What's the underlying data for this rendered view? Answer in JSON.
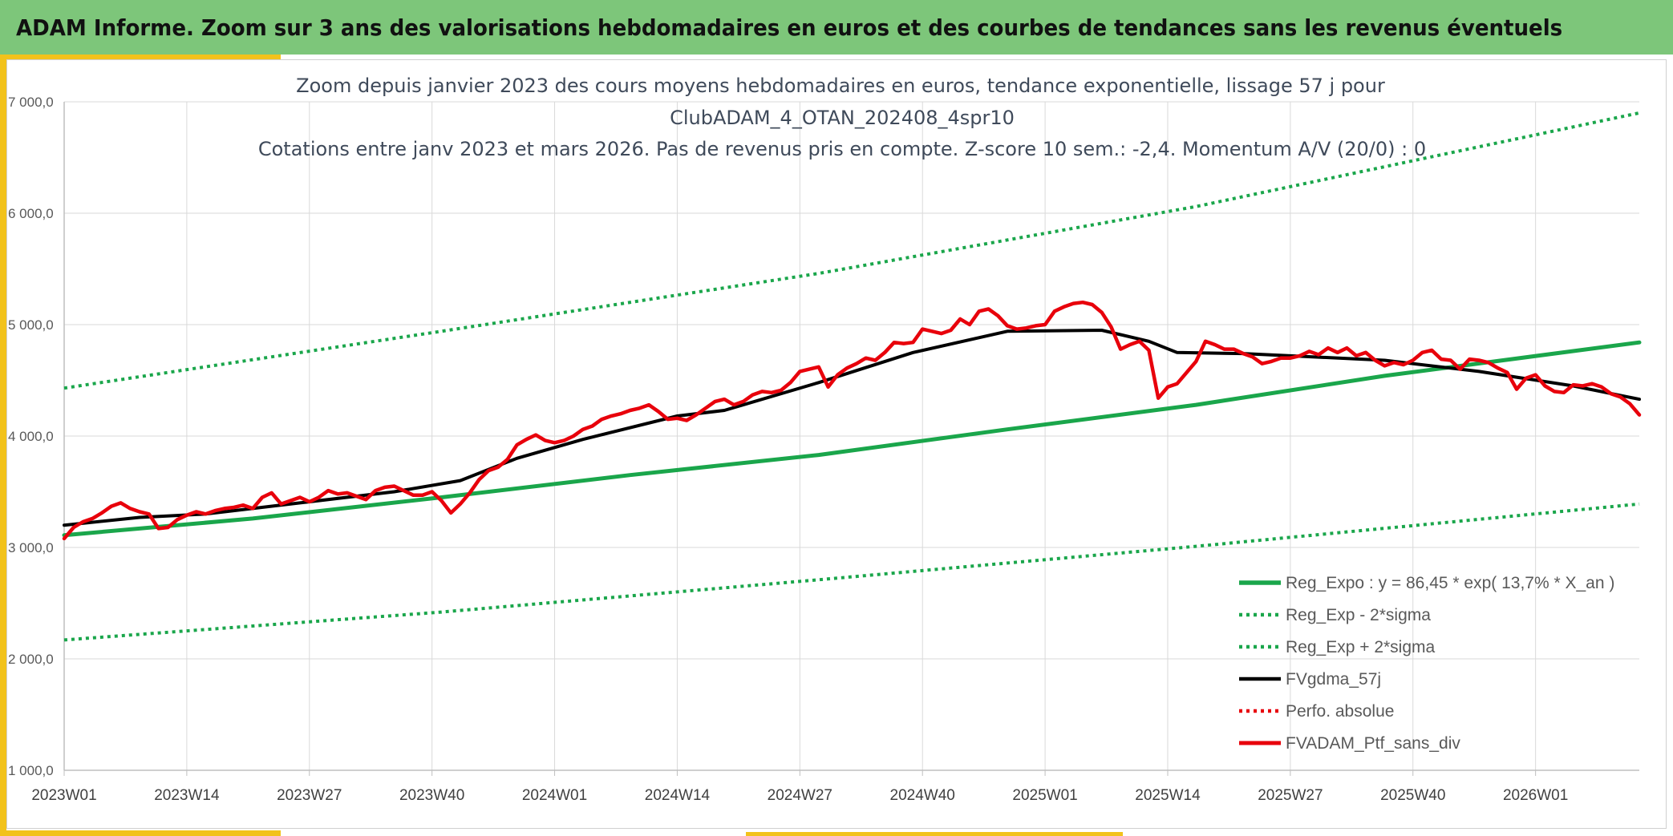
{
  "header": {
    "title": "ADAM Informe. Zoom sur 3 ans des valorisations hebdomadaires en euros et des courbes de tendances sans les revenus éventuels"
  },
  "colors": {
    "header_bg": "#7dc67a",
    "accent": "#f2c21b",
    "trend": "#1aa64b",
    "trend_band": "#1aa64b",
    "smoothed": "#000000",
    "price": "#e8000b",
    "perf": "#e8000b"
  },
  "chart_data": {
    "type": "line",
    "title_lines": [
      "Zoom depuis janvier 2023 des cours moyens hebdomadaires en euros, tendance exponentielle, lissage 57 j pour",
      "ClubADAM_4_OTAN_202408_4spr10",
      "Cotations entre janv 2023 et mars 2026. Pas de revenus pris en compte. Z-score 10 sem.: -2,4. Momentum A/V (20/0) : 0"
    ],
    "x_range": [
      0,
      167
    ],
    "ylim": [
      1000,
      7000
    ],
    "y_ticks": [
      {
        "value": 1000,
        "label": "1 000,0"
      },
      {
        "value": 2000,
        "label": "2 000,0"
      },
      {
        "value": 3000,
        "label": "3 000,0"
      },
      {
        "value": 4000,
        "label": "4 000,0"
      },
      {
        "value": 5000,
        "label": "5 000,0"
      },
      {
        "value": 6000,
        "label": "6 000,0"
      },
      {
        "value": 7000,
        "label": "7 000,0"
      }
    ],
    "x_ticks": [
      {
        "x": 0,
        "label": "2023W01"
      },
      {
        "x": 13,
        "label": "2023W14"
      },
      {
        "x": 26,
        "label": "2023W27"
      },
      {
        "x": 39,
        "label": "2023W40"
      },
      {
        "x": 52,
        "label": "2024W01"
      },
      {
        "x": 65,
        "label": "2024W14"
      },
      {
        "x": 78,
        "label": "2024W27"
      },
      {
        "x": 91,
        "label": "2024W40"
      },
      {
        "x": 104,
        "label": "2025W01"
      },
      {
        "x": 117,
        "label": "2025W14"
      },
      {
        "x": 130,
        "label": "2025W27"
      },
      {
        "x": 143,
        "label": "2025W40"
      },
      {
        "x": 156,
        "label": "2026W01"
      }
    ],
    "grid": true,
    "legend_position": "bottom-right",
    "series": [
      {
        "name": "Reg_Expo : y = 86,45 * exp( 13,7% *  X_an )",
        "style": "solid-green",
        "points": [
          [
            0,
            3110
          ],
          [
            20,
            3260
          ],
          [
            40,
            3450
          ],
          [
            60,
            3650
          ],
          [
            80,
            3830
          ],
          [
            100,
            4060
          ],
          [
            120,
            4280
          ],
          [
            140,
            4540
          ],
          [
            167,
            4840
          ]
        ]
      },
      {
        "name": "Reg_Exp - 2*sigma",
        "style": "dotted-green",
        "points": [
          [
            0,
            2170
          ],
          [
            40,
            2420
          ],
          [
            80,
            2710
          ],
          [
            120,
            3010
          ],
          [
            167,
            3390
          ]
        ]
      },
      {
        "name": "Reg_Exp + 2*sigma",
        "style": "dotted-green",
        "points": [
          [
            0,
            4430
          ],
          [
            40,
            4940
          ],
          [
            80,
            5460
          ],
          [
            120,
            6060
          ],
          [
            167,
            6900
          ]
        ]
      },
      {
        "name": "FVgdma_57j",
        "style": "solid-black",
        "points": [
          [
            0,
            3200
          ],
          [
            8,
            3270
          ],
          [
            15,
            3300
          ],
          [
            25,
            3400
          ],
          [
            35,
            3500
          ],
          [
            42,
            3600
          ],
          [
            48,
            3800
          ],
          [
            55,
            3970
          ],
          [
            65,
            4180
          ],
          [
            70,
            4230
          ],
          [
            80,
            4480
          ],
          [
            90,
            4750
          ],
          [
            100,
            4940
          ],
          [
            110,
            4950
          ],
          [
            115,
            4850
          ],
          [
            118,
            4750
          ],
          [
            125,
            4740
          ],
          [
            130,
            4720
          ],
          [
            140,
            4680
          ],
          [
            150,
            4580
          ],
          [
            160,
            4450
          ],
          [
            167,
            4330
          ]
        ]
      },
      {
        "name": "Perfo. absolue",
        "style": "dotted-red",
        "points": []
      },
      {
        "name": "FVADAM_Ptf_sans_div",
        "style": "solid-red",
        "points": [
          [
            0,
            3080
          ],
          [
            1,
            3180
          ],
          [
            2,
            3230
          ],
          [
            3,
            3260
          ],
          [
            4,
            3310
          ],
          [
            5,
            3370
          ],
          [
            6,
            3400
          ],
          [
            7,
            3350
          ],
          [
            8,
            3320
          ],
          [
            9,
            3300
          ],
          [
            10,
            3170
          ],
          [
            11,
            3180
          ],
          [
            12,
            3250
          ],
          [
            13,
            3290
          ],
          [
            14,
            3320
          ],
          [
            15,
            3300
          ],
          [
            16,
            3330
          ],
          [
            17,
            3350
          ],
          [
            18,
            3360
          ],
          [
            19,
            3380
          ],
          [
            20,
            3350
          ],
          [
            21,
            3450
          ],
          [
            22,
            3490
          ],
          [
            23,
            3390
          ],
          [
            24,
            3420
          ],
          [
            25,
            3450
          ],
          [
            26,
            3410
          ],
          [
            27,
            3450
          ],
          [
            28,
            3510
          ],
          [
            29,
            3480
          ],
          [
            30,
            3490
          ],
          [
            31,
            3460
          ],
          [
            32,
            3430
          ],
          [
            33,
            3510
          ],
          [
            34,
            3540
          ],
          [
            35,
            3550
          ],
          [
            36,
            3510
          ],
          [
            37,
            3470
          ],
          [
            38,
            3470
          ],
          [
            39,
            3500
          ],
          [
            40,
            3420
          ],
          [
            41,
            3310
          ],
          [
            42,
            3390
          ],
          [
            43,
            3490
          ],
          [
            44,
            3610
          ],
          [
            45,
            3690
          ],
          [
            46,
            3720
          ],
          [
            47,
            3790
          ],
          [
            48,
            3920
          ],
          [
            49,
            3970
          ],
          [
            50,
            4010
          ],
          [
            51,
            3960
          ],
          [
            52,
            3940
          ],
          [
            53,
            3960
          ],
          [
            54,
            4000
          ],
          [
            55,
            4060
          ],
          [
            56,
            4090
          ],
          [
            57,
            4150
          ],
          [
            58,
            4180
          ],
          [
            59,
            4200
          ],
          [
            60,
            4230
          ],
          [
            61,
            4250
          ],
          [
            62,
            4280
          ],
          [
            63,
            4220
          ],
          [
            64,
            4150
          ],
          [
            65,
            4160
          ],
          [
            66,
            4140
          ],
          [
            67,
            4190
          ],
          [
            68,
            4250
          ],
          [
            69,
            4310
          ],
          [
            70,
            4330
          ],
          [
            71,
            4280
          ],
          [
            72,
            4310
          ],
          [
            73,
            4370
          ],
          [
            74,
            4400
          ],
          [
            75,
            4390
          ],
          [
            76,
            4410
          ],
          [
            77,
            4480
          ],
          [
            78,
            4580
          ],
          [
            79,
            4600
          ],
          [
            80,
            4620
          ],
          [
            81,
            4440
          ],
          [
            82,
            4550
          ],
          [
            83,
            4610
          ],
          [
            84,
            4650
          ],
          [
            85,
            4700
          ],
          [
            86,
            4680
          ],
          [
            87,
            4750
          ],
          [
            88,
            4840
          ],
          [
            89,
            4830
          ],
          [
            90,
            4840
          ],
          [
            91,
            4960
          ],
          [
            92,
            4940
          ],
          [
            93,
            4920
          ],
          [
            94,
            4950
          ],
          [
            95,
            5050
          ],
          [
            96,
            5000
          ],
          [
            97,
            5120
          ],
          [
            98,
            5140
          ],
          [
            99,
            5080
          ],
          [
            100,
            4990
          ],
          [
            101,
            4960
          ],
          [
            102,
            4970
          ],
          [
            103,
            4990
          ],
          [
            104,
            5000
          ],
          [
            105,
            5120
          ],
          [
            106,
            5160
          ],
          [
            107,
            5190
          ],
          [
            108,
            5200
          ],
          [
            109,
            5180
          ],
          [
            110,
            5110
          ],
          [
            111,
            4980
          ],
          [
            112,
            4780
          ],
          [
            113,
            4820
          ],
          [
            114,
            4850
          ],
          [
            115,
            4770
          ],
          [
            116,
            4340
          ],
          [
            117,
            4440
          ],
          [
            118,
            4470
          ],
          [
            119,
            4570
          ],
          [
            120,
            4670
          ],
          [
            121,
            4850
          ],
          [
            122,
            4820
          ],
          [
            123,
            4780
          ],
          [
            124,
            4780
          ],
          [
            125,
            4740
          ],
          [
            126,
            4710
          ],
          [
            127,
            4650
          ],
          [
            128,
            4670
          ],
          [
            129,
            4700
          ],
          [
            130,
            4700
          ],
          [
            131,
            4720
          ],
          [
            132,
            4760
          ],
          [
            133,
            4730
          ],
          [
            134,
            4790
          ],
          [
            135,
            4750
          ],
          [
            136,
            4790
          ],
          [
            137,
            4720
          ],
          [
            138,
            4750
          ],
          [
            139,
            4680
          ],
          [
            140,
            4630
          ],
          [
            141,
            4660
          ],
          [
            142,
            4640
          ],
          [
            143,
            4680
          ],
          [
            144,
            4750
          ],
          [
            145,
            4770
          ],
          [
            146,
            4690
          ],
          [
            147,
            4680
          ],
          [
            148,
            4600
          ],
          [
            149,
            4690
          ],
          [
            150,
            4680
          ],
          [
            151,
            4660
          ],
          [
            152,
            4610
          ],
          [
            153,
            4570
          ],
          [
            154,
            4420
          ],
          [
            155,
            4520
          ],
          [
            156,
            4550
          ],
          [
            157,
            4450
          ],
          [
            158,
            4400
          ],
          [
            159,
            4390
          ],
          [
            160,
            4460
          ],
          [
            161,
            4450
          ],
          [
            162,
            4470
          ],
          [
            163,
            4440
          ],
          [
            164,
            4380
          ],
          [
            165,
            4350
          ],
          [
            166,
            4290
          ],
          [
            167,
            4190
          ]
        ]
      }
    ]
  }
}
